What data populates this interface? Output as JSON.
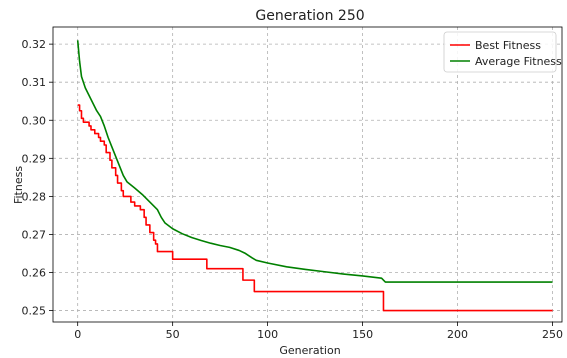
{
  "chart_data": {
    "type": "line",
    "title": "Generation 250",
    "xlabel": "Generation",
    "ylabel": "Fitness",
    "xlim": [
      -13,
      255
    ],
    "ylim": [
      0.247,
      0.3245
    ],
    "grid": true,
    "legend_position": "top-right",
    "x_ticks": [
      0,
      50,
      100,
      150,
      200,
      250
    ],
    "y_ticks": [
      0.25,
      0.26,
      0.27,
      0.28,
      0.29,
      0.3,
      0.31,
      0.32
    ],
    "series": [
      {
        "name": "Best Fitness",
        "color": "#ff0000",
        "step": true,
        "points": [
          [
            0,
            0.304
          ],
          [
            1,
            0.3025
          ],
          [
            2,
            0.3005
          ],
          [
            3,
            0.2995
          ],
          [
            6,
            0.2985
          ],
          [
            7,
            0.2975
          ],
          [
            9,
            0.2965
          ],
          [
            11,
            0.2955
          ],
          [
            12,
            0.2945
          ],
          [
            14,
            0.2935
          ],
          [
            15,
            0.2915
          ],
          [
            17,
            0.2895
          ],
          [
            18,
            0.2875
          ],
          [
            20,
            0.2855
          ],
          [
            21,
            0.2835
          ],
          [
            23,
            0.2815
          ],
          [
            24,
            0.28
          ],
          [
            28,
            0.2785
          ],
          [
            30,
            0.2775
          ],
          [
            33,
            0.2765
          ],
          [
            35,
            0.2745
          ],
          [
            36,
            0.2725
          ],
          [
            38,
            0.2705
          ],
          [
            40,
            0.2685
          ],
          [
            41,
            0.2675
          ],
          [
            42,
            0.2655
          ],
          [
            50,
            0.2635
          ],
          [
            68,
            0.261
          ],
          [
            87,
            0.258
          ],
          [
            93,
            0.255
          ],
          [
            161,
            0.25
          ],
          [
            250,
            0.25
          ]
        ]
      },
      {
        "name": "Average Fitness",
        "color": "#008000",
        "step": false,
        "points": [
          [
            0,
            0.321
          ],
          [
            1,
            0.3155
          ],
          [
            2,
            0.3115
          ],
          [
            4,
            0.3085
          ],
          [
            6,
            0.3065
          ],
          [
            8,
            0.3045
          ],
          [
            10,
            0.3025
          ],
          [
            12,
            0.301
          ],
          [
            14,
            0.2985
          ],
          [
            16,
            0.2955
          ],
          [
            18,
            0.293
          ],
          [
            20,
            0.2905
          ],
          [
            22,
            0.288
          ],
          [
            24,
            0.2855
          ],
          [
            26,
            0.2838
          ],
          [
            30,
            0.2822
          ],
          [
            34,
            0.2805
          ],
          [
            38,
            0.2785
          ],
          [
            42,
            0.2765
          ],
          [
            44,
            0.2745
          ],
          [
            46,
            0.273
          ],
          [
            50,
            0.2715
          ],
          [
            55,
            0.2702
          ],
          [
            60,
            0.2692
          ],
          [
            65,
            0.2684
          ],
          [
            70,
            0.2677
          ],
          [
            75,
            0.2671
          ],
          [
            80,
            0.2666
          ],
          [
            85,
            0.2658
          ],
          [
            88,
            0.2651
          ],
          [
            92,
            0.2638
          ],
          [
            94,
            0.2632
          ],
          [
            100,
            0.2625
          ],
          [
            110,
            0.2615
          ],
          [
            120,
            0.2608
          ],
          [
            130,
            0.2602
          ],
          [
            140,
            0.2596
          ],
          [
            150,
            0.2591
          ],
          [
            160,
            0.2585
          ],
          [
            162,
            0.2575
          ],
          [
            200,
            0.2575
          ],
          [
            250,
            0.2575
          ]
        ]
      }
    ]
  }
}
